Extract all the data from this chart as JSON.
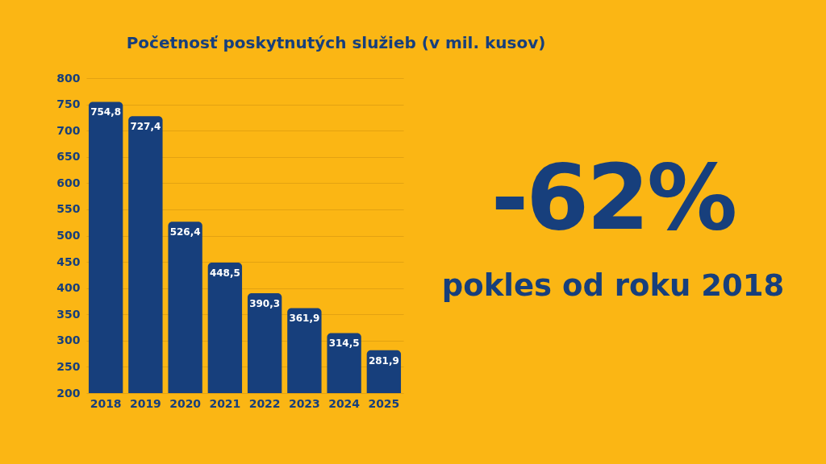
{
  "chart_data": {
    "type": "bar",
    "title": "Početnosť poskytnutých služieb (v mil. kusov)",
    "categories": [
      "2018",
      "2019",
      "2020",
      "2021",
      "2022",
      "2023",
      "2024",
      "2025"
    ],
    "values": [
      754.8,
      727.4,
      526.4,
      448.5,
      390.3,
      361.9,
      314.5,
      281.9
    ],
    "value_labels": [
      "754,8",
      "727,4",
      "526,4",
      "448,5",
      "390,3",
      "361,9",
      "314,5",
      "281,9"
    ],
    "color": "#173f7c",
    "ylim": [
      200,
      800
    ],
    "yticks": [
      200,
      250,
      300,
      350,
      400,
      450,
      500,
      550,
      600,
      650,
      700,
      750,
      800
    ],
    "grid": "y",
    "annotations": [
      "-62%",
      "pokles od roku 2018"
    ]
  }
}
